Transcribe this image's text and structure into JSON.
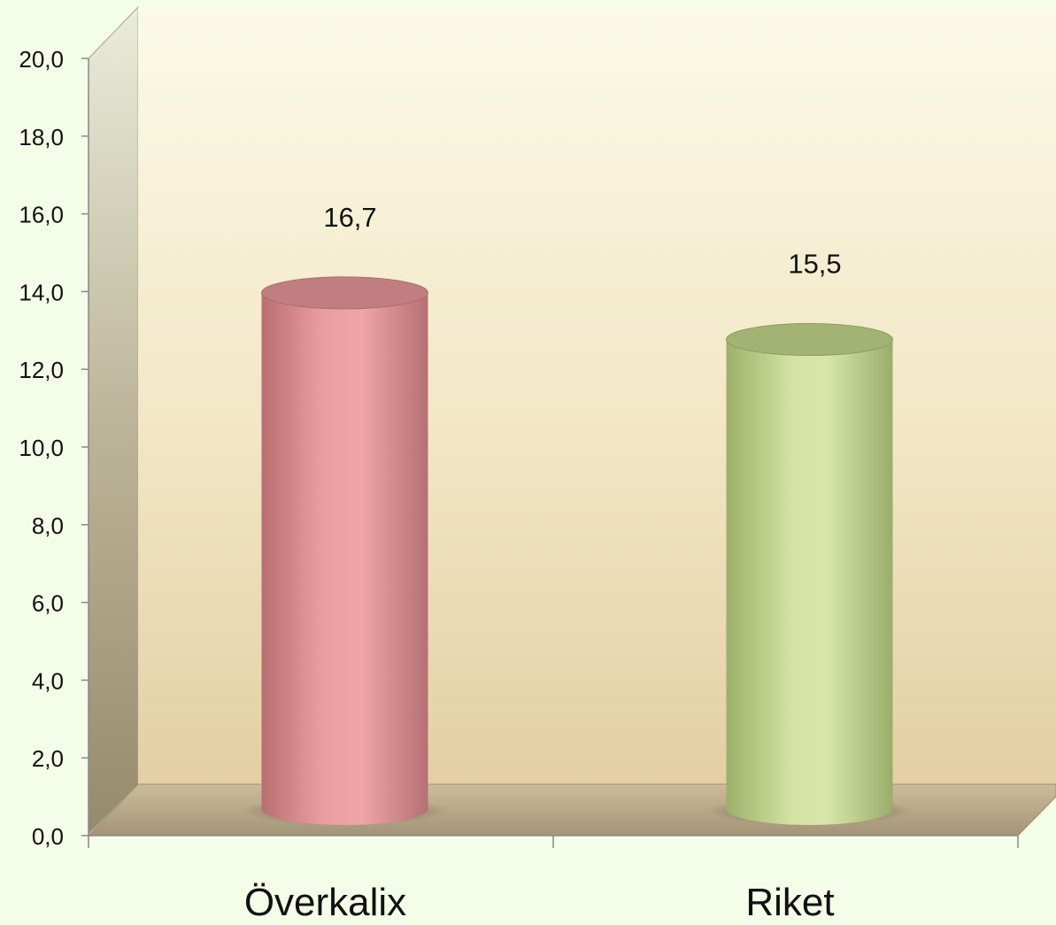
{
  "chart_data": {
    "type": "bar",
    "style": "3d-cylinder",
    "title": "",
    "xlabel": "",
    "ylabel": "",
    "ylim": [
      0,
      20
    ],
    "yticks": [
      "0,0",
      "2,0",
      "4,0",
      "6,0",
      "8,0",
      "10,0",
      "12,0",
      "14,0",
      "16,0",
      "18,0",
      "20,0"
    ],
    "categories": [
      "Överkalix",
      "Riket"
    ],
    "values": [
      16.7,
      15.5
    ],
    "data_labels": [
      "16,7",
      "15,5"
    ],
    "bar_colors": [
      "#e59a9c",
      "#c9d99a"
    ],
    "grid": false,
    "legend": "none"
  }
}
